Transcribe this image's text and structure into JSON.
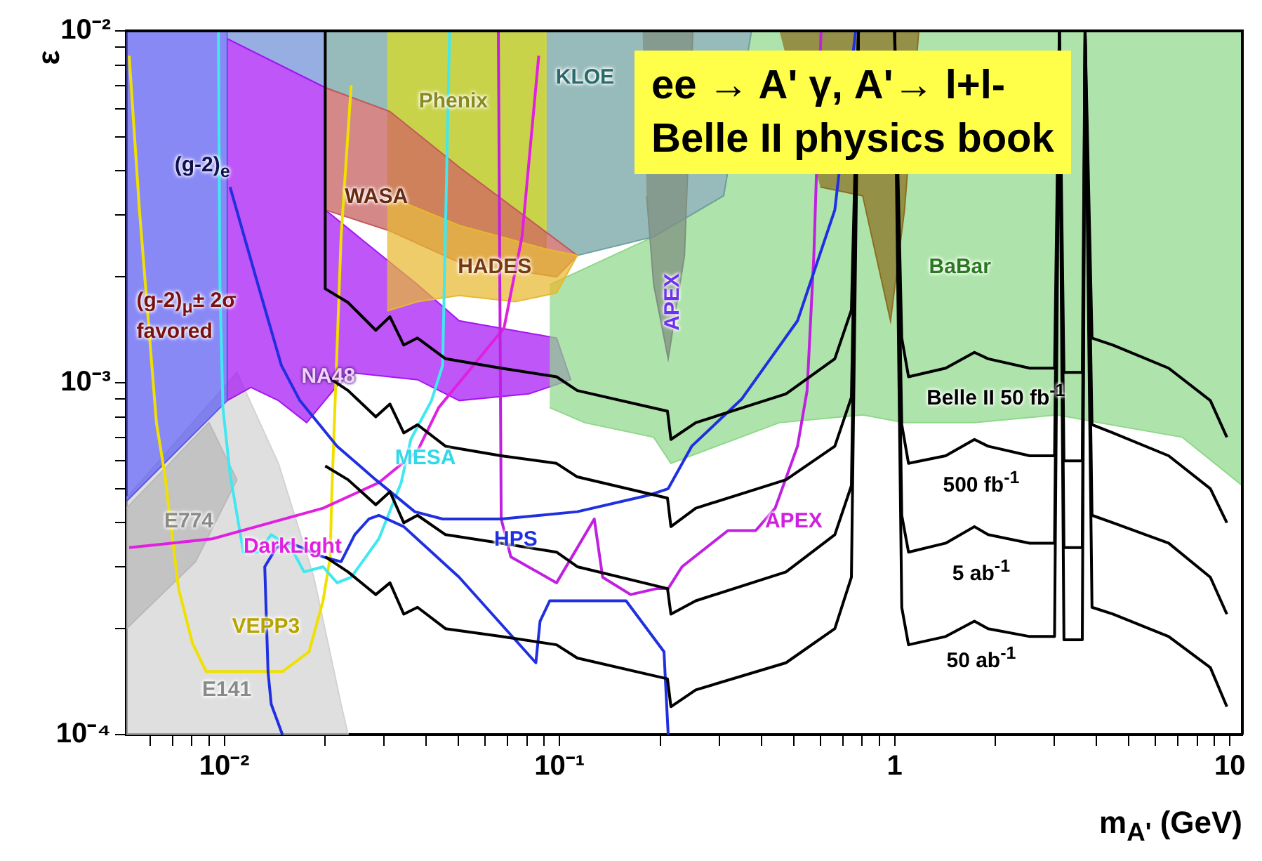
{
  "chart_data": {
    "type": "line",
    "title": "ee → A' γ, A'→ l+l-",
    "subtitle": "Belle II physics book",
    "xlabel": "m$_{A'}$ (GeV)",
    "ylabel": "ε",
    "log": "xy",
    "grid": false,
    "legend": false,
    "marker": "none",
    "xlim": [
      0.0051,
      10.9
    ],
    "ylim": [
      0.0001,
      0.01
    ],
    "xticks": [
      {
        "value": 0.006,
        "label": null
      },
      {
        "value": 0.007,
        "label": null
      },
      {
        "value": 0.008,
        "label": null
      },
      {
        "value": 0.009,
        "label": null
      },
      {
        "value": 0.01,
        "label": "10⁻²"
      },
      {
        "value": 0.02,
        "label": null
      },
      {
        "value": 0.03,
        "label": null
      },
      {
        "value": 0.04,
        "label": null
      },
      {
        "value": 0.05,
        "label": null
      },
      {
        "value": 0.06,
        "label": null
      },
      {
        "value": 0.07,
        "label": null
      },
      {
        "value": 0.08,
        "label": null
      },
      {
        "value": 0.09,
        "label": null
      },
      {
        "value": 0.1,
        "label": "10⁻¹"
      },
      {
        "value": 0.2,
        "label": null
      },
      {
        "value": 0.3,
        "label": null
      },
      {
        "value": 0.4,
        "label": null
      },
      {
        "value": 0.5,
        "label": null
      },
      {
        "value": 0.6,
        "label": null
      },
      {
        "value": 0.7,
        "label": null
      },
      {
        "value": 0.8,
        "label": null
      },
      {
        "value": 0.9,
        "label": null
      },
      1,
      {
        "value": 2,
        "label": null
      },
      {
        "value": 3,
        "label": null
      },
      {
        "value": 4,
        "label": null
      },
      {
        "value": 5,
        "label": null
      },
      {
        "value": 6,
        "label": null
      },
      {
        "value": 7,
        "label": null
      },
      {
        "value": 8,
        "label": null
      },
      {
        "value": 9,
        "label": null
      },
      10
    ],
    "yticks": [
      {
        "value": 0.0001,
        "label": "10⁻⁴"
      },
      {
        "value": 0.0002,
        "label": null
      },
      {
        "value": 0.0003,
        "label": null
      },
      {
        "value": 0.0004,
        "label": null
      },
      {
        "value": 0.0005,
        "label": null
      },
      {
        "value": 0.0006,
        "label": null
      },
      {
        "value": 0.0007,
        "label": null
      },
      {
        "value": 0.0008,
        "label": null
      },
      {
        "value": 0.0009,
        "label": null
      },
      {
        "value": 0.001,
        "label": "10⁻³"
      },
      {
        "value": 0.002,
        "label": null
      },
      {
        "value": 0.003,
        "label": null
      },
      {
        "value": 0.004,
        "label": null
      },
      {
        "value": 0.005,
        "label": null
      },
      {
        "value": 0.006,
        "label": null
      },
      {
        "value": 0.007,
        "label": null
      },
      {
        "value": 0.008,
        "label": null
      },
      {
        "value": 0.009,
        "label": null
      },
      {
        "value": 0.01,
        "label": "10⁻²"
      }
    ],
    "series": [
      {
        "type": "area",
        "color": "#d3d3d3",
        "x": [
          0.0051,
          0.0109,
          0.0145,
          0.0185,
          0.0223,
          0.0234,
          0.0051
        ],
        "values": [
          0.00047,
          0.00107,
          0.00059,
          0.00028,
          0.000122,
          0.0001,
          0.0001
        ]
      },
      {
        "type": "area",
        "color": "#b9b9b9",
        "x": [
          0.0051,
          0.009,
          0.0109,
          0.0082,
          0.0051
        ],
        "values": [
          0.00044,
          0.00077,
          0.00053,
          0.00031,
          0.0002
        ]
      },
      {
        "type": "area",
        "color": "#5b5bf2",
        "x": [
          0.0051,
          0.0102,
          0.0102,
          0.0051
        ],
        "values": [
          0.01,
          0.01,
          0.00089,
          0.00046
        ]
      },
      {
        "type": "area",
        "color": "#6f8fd8",
        "x": [
          0.0102,
          0.02,
          0.02,
          0.0102
        ],
        "values": [
          0.01,
          0.01,
          0.0069,
          0.0095
        ]
      },
      {
        "type": "area",
        "color": "#a515f5",
        "x": [
          0.0102,
          0.02,
          0.02,
          0.0377,
          0.0502,
          0.098,
          0.108,
          0.0811,
          0.0502,
          0.0377,
          0.0234,
          0.0176,
          0.0145,
          0.012,
          0.0102
        ],
        "values": [
          0.0095,
          0.0069,
          0.0031,
          0.0019,
          0.0015,
          0.00134,
          0.00102,
          0.00093,
          0.00089,
          0.00102,
          0.00107,
          0.00077,
          0.00089,
          0.00097,
          0.00089
        ]
      },
      {
        "type": "area",
        "color": "#8fd88a",
        "x": [
          0.0935,
          0.191,
          0.309,
          0.374,
          10.9,
          10.9,
          7.22,
          4.07,
          3.06,
          1.73,
          1.07,
          0.803,
          0.453,
          0.215,
          0.191,
          0.119,
          0.0935
        ],
        "values": [
          0.0019,
          0.0026,
          0.0034,
          0.01,
          0.01,
          0.00051,
          0.0007,
          0.00077,
          0.00081,
          0.00077,
          0.00077,
          0.00081,
          0.00077,
          0.00059,
          0.0007,
          0.00077,
          0.00085
        ]
      },
      {
        "type": "area",
        "color": "#6fa0a0",
        "x": [
          0.02,
          0.374,
          0.309,
          0.191,
          0.113,
          0.0502,
          0.0312,
          0.02
        ],
        "values": [
          0.01,
          0.01,
          0.0034,
          0.0026,
          0.0023,
          0.0041,
          0.0059,
          0.0069
        ]
      },
      {
        "type": "area",
        "color": "#dcdc1e",
        "x": [
          0.0306,
          0.091,
          0.091,
          0.0502,
          0.0306
        ],
        "values": [
          0.01,
          0.01,
          0.0024,
          0.0028,
          0.0034
        ]
      },
      {
        "type": "area",
        "color": "#c55a5a",
        "x": [
          0.02,
          0.0312,
          0.0502,
          0.113,
          0.098,
          0.0502,
          0.0312,
          0.02
        ],
        "values": [
          0.0069,
          0.0059,
          0.0041,
          0.0023,
          0.002,
          0.0022,
          0.0027,
          0.0031
        ]
      },
      {
        "type": "area",
        "color": "#e8b830",
        "x": [
          0.0306,
          0.0502,
          0.091,
          0.113,
          0.098,
          0.0737,
          0.0502,
          0.0377,
          0.0306
        ],
        "values": [
          0.0034,
          0.0028,
          0.0024,
          0.0023,
          0.0018,
          0.0017,
          0.00177,
          0.0017,
          0.0016
        ]
      },
      {
        "type": "area",
        "color": "#7f8f80",
        "x": [
          0.177,
          0.25,
          0.236,
          0.211,
          0.191,
          0.182
        ],
        "values": [
          0.01,
          0.01,
          0.0023,
          0.00117,
          0.0019,
          0.0034
        ]
      },
      {
        "type": "area",
        "color": "#8a7020",
        "x": [
          0.453,
          1.18,
          1.07,
          0.972,
          0.803,
          0.6
        ],
        "values": [
          0.01,
          0.01,
          0.0031,
          0.0015,
          0.0034,
          0.0036
        ]
      },
      {
        "type": "line",
        "color": "#f0e000",
        "x": [
          0.0052,
          0.00558,
          0.00627,
          0.00664,
          0.0073,
          0.00803,
          0.00883,
          0.0149,
          0.0179,
          0.0197,
          0.0207,
          0.0209,
          0.0223,
          0.0239
        ],
        "values": [
          0.0085,
          0.0031,
          0.00077,
          0.00055,
          0.00026,
          0.000182,
          0.000151,
          0.000151,
          0.000172,
          0.00024,
          0.00032,
          0.00047,
          0.0026,
          0.007
        ]
      },
      {
        "type": "line",
        "color": "#40e8f0",
        "x": [
          0.0096,
          0.0097,
          0.0099,
          0.0104,
          0.0114,
          0.0126,
          0.0138,
          0.0158,
          0.0173,
          0.0197,
          0.0217,
          0.0239,
          0.0289,
          0.0337,
          0.036,
          0.0415,
          0.0448,
          0.047
        ],
        "values": [
          0.01,
          0.0019,
          0.00085,
          0.00055,
          0.00033,
          0.00033,
          0.00037,
          0.00034,
          0.00029,
          0.0003,
          0.00027,
          0.00028,
          0.00036,
          0.00052,
          0.00069,
          0.00089,
          0.00112,
          0.01
        ]
      },
      {
        "type": "line",
        "color": "#e020e0",
        "x": [
          0.0052,
          0.0092,
          0.0197,
          0.0289,
          0.0377,
          0.0436,
          0.0683,
          0.0773,
          0.0867
        ],
        "values": [
          0.00034,
          0.00036,
          0.00044,
          0.00052,
          0.00064,
          0.00085,
          0.00143,
          0.0026,
          0.0085
        ]
      },
      {
        "type": "line",
        "color": "#c020e0",
        "x": [
          0.0657,
          0.067,
          0.0716,
          0.098,
          0.127,
          0.1345,
          0.163,
          0.195,
          0.211,
          0.232,
          0.318,
          0.385,
          0.44,
          0.513,
          0.548,
          0.574,
          0.603
        ],
        "values": [
          0.01,
          0.00041,
          0.00032,
          0.00027,
          0.00041,
          0.00028,
          0.00025,
          0.00026,
          0.00026,
          0.0003,
          0.00038,
          0.00038,
          0.00044,
          0.00066,
          0.00095,
          0.0023,
          0.01
        ]
      },
      {
        "type": "line",
        "color": "#2030e0",
        "x": [
          0.0104,
          0.0126,
          0.0148,
          0.0168,
          0.0217,
          0.0283,
          0.037,
          0.0448,
          0.067,
          0.113,
          0.186,
          0.211,
          0.248,
          0.35,
          0.513,
          0.663,
          0.765
        ],
        "values": [
          0.0036,
          0.0019,
          0.00112,
          0.00089,
          0.00066,
          0.00053,
          0.00043,
          0.00041,
          0.00041,
          0.00043,
          0.00048,
          0.0005,
          0.00066,
          0.0009,
          0.0015,
          0.0031,
          0.01
        ]
      },
      {
        "type": "line",
        "color": "#2030e0",
        "x": [
          0.0149,
          0.0138,
          0.0135,
          0.0132,
          0.0143,
          0.0158,
          0.0197,
          0.0223,
          0.0245,
          0.027,
          0.0289,
          0.0343,
          0.0502,
          0.085,
          0.0875,
          0.0935,
          0.113,
          0.158,
          0.205,
          0.211
        ],
        "values": [
          0.0001,
          0.000122,
          0.000151,
          0.0003,
          0.00034,
          0.00035,
          0.00032,
          0.00031,
          0.00037,
          0.00041,
          0.00042,
          0.00039,
          0.00028,
          0.00016,
          0.00021,
          0.00024,
          0.00024,
          0.00024,
          0.000172,
          0.0001
        ]
      },
      {
        "type": "line",
        "color": "#000000",
        "x": [
          0.02,
          0.02,
          0.0234,
          0.0283,
          0.0312,
          0.0343,
          0.0377,
          0.0457,
          0.067,
          0.098,
          0.113,
          0.21,
          0.215,
          0.255,
          0.474,
          0.663,
          0.743,
          0.78,
          1.0,
          1.05,
          1.1,
          1.42,
          1.73,
          1.9,
          2.53,
          3.0,
          3.1,
          3.2,
          3.63,
          3.7,
          3.88,
          4.48,
          6.57,
          8.75,
          9.8
        ],
        "values": [
          0.01,
          0.00185,
          0.00169,
          0.00141,
          0.00154,
          0.00128,
          0.00134,
          0.00117,
          0.0011,
          0.00104,
          0.00095,
          0.00083,
          0.00069,
          0.00077,
          0.00093,
          0.00117,
          0.00161,
          0.01,
          0.01,
          0.00134,
          0.00104,
          0.0011,
          0.00122,
          0.00117,
          0.0011,
          0.0011,
          0.01,
          0.00107,
          0.00107,
          0.01,
          0.00134,
          0.00128,
          0.0011,
          0.00089,
          0.0007
        ]
      },
      {
        "type": "line",
        "color": "#000000",
        "x": [
          0.02,
          0.0234,
          0.0283,
          0.0312,
          0.0343,
          0.0377,
          0.0457,
          0.067,
          0.098,
          0.113,
          0.21,
          0.215,
          0.255,
          0.474,
          0.663,
          0.743,
          0.78,
          1.0,
          1.05,
          1.1,
          1.42,
          1.73,
          1.9,
          2.53,
          3.0,
          3.1,
          3.2,
          3.63,
          3.7,
          3.88,
          4.48,
          6.57,
          8.75,
          9.8
        ],
        "values": [
          0.00105,
          0.00095,
          0.0008,
          0.00087,
          0.00072,
          0.00076,
          0.00066,
          0.00062,
          0.00059,
          0.00054,
          0.00047,
          0.00039,
          0.00044,
          0.00053,
          0.00066,
          0.00091,
          0.01,
          0.01,
          0.00076,
          0.00059,
          0.00062,
          0.00069,
          0.00066,
          0.00062,
          0.00062,
          0.01,
          0.0006,
          0.0006,
          0.01,
          0.00076,
          0.00072,
          0.00062,
          0.0005,
          0.0004
        ]
      },
      {
        "type": "line",
        "color": "#000000",
        "x": [
          0.02,
          0.0234,
          0.0283,
          0.0312,
          0.0343,
          0.0377,
          0.0457,
          0.067,
          0.098,
          0.113,
          0.21,
          0.215,
          0.255,
          0.474,
          0.663,
          0.743,
          0.78,
          1.0,
          1.05,
          1.1,
          1.42,
          1.73,
          1.9,
          2.53,
          3.0,
          3.1,
          3.2,
          3.63,
          3.7,
          3.88,
          4.48,
          6.57,
          8.75,
          9.8
        ],
        "values": [
          0.00058,
          0.00053,
          0.00045,
          0.00049,
          0.0004,
          0.00042,
          0.00037,
          0.00035,
          0.00033,
          0.0003,
          0.00026,
          0.00022,
          0.00024,
          0.00029,
          0.00037,
          0.00051,
          0.01,
          0.01,
          0.00042,
          0.00033,
          0.00035,
          0.00039,
          0.00037,
          0.00035,
          0.00035,
          0.01,
          0.00034,
          0.00034,
          0.01,
          0.00042,
          0.0004,
          0.00035,
          0.00028,
          0.00022
        ]
      },
      {
        "type": "line",
        "color": "#000000",
        "x": [
          0.02,
          0.0234,
          0.0283,
          0.0312,
          0.0343,
          0.0377,
          0.0457,
          0.067,
          0.098,
          0.113,
          0.21,
          0.215,
          0.255,
          0.474,
          0.663,
          0.743,
          0.78,
          1.0,
          1.05,
          1.1,
          1.42,
          1.73,
          1.9,
          2.53,
          3.0,
          3.1,
          3.2,
          3.63,
          3.7,
          3.88,
          4.48,
          6.57,
          8.75,
          9.8
        ],
        "values": [
          0.00032,
          0.00029,
          0.00025,
          0.00027,
          0.00022,
          0.00023,
          0.0002,
          0.00019,
          0.00018,
          0.000165,
          0.000144,
          0.00012,
          0.000134,
          0.00016,
          0.0002,
          0.00028,
          0.01,
          0.01,
          0.00023,
          0.00018,
          0.00019,
          0.00021,
          0.0002,
          0.00019,
          0.00019,
          0.01,
          0.000186,
          0.000186,
          0.01,
          0.00023,
          0.00022,
          0.00019,
          0.000155,
          0.00012
        ]
      }
    ],
    "annotations": [
      "(g-2)$_{e}$",
      "(g-2)$_{μ}$± 2σ favored",
      "WASA",
      "Phenix",
      "HADES",
      "KLOE",
      "APEX",
      "BaBar",
      "NA48",
      "MESA",
      "E774",
      "DarkLight",
      "HPS",
      "APEX",
      "VEPP3",
      "E141",
      "Belle II 50 fb$^{-1}$",
      "500 fb$^{-1}$",
      "5 ab$^{-1}$",
      "50 ab$^{-1}$"
    ]
  }
}
